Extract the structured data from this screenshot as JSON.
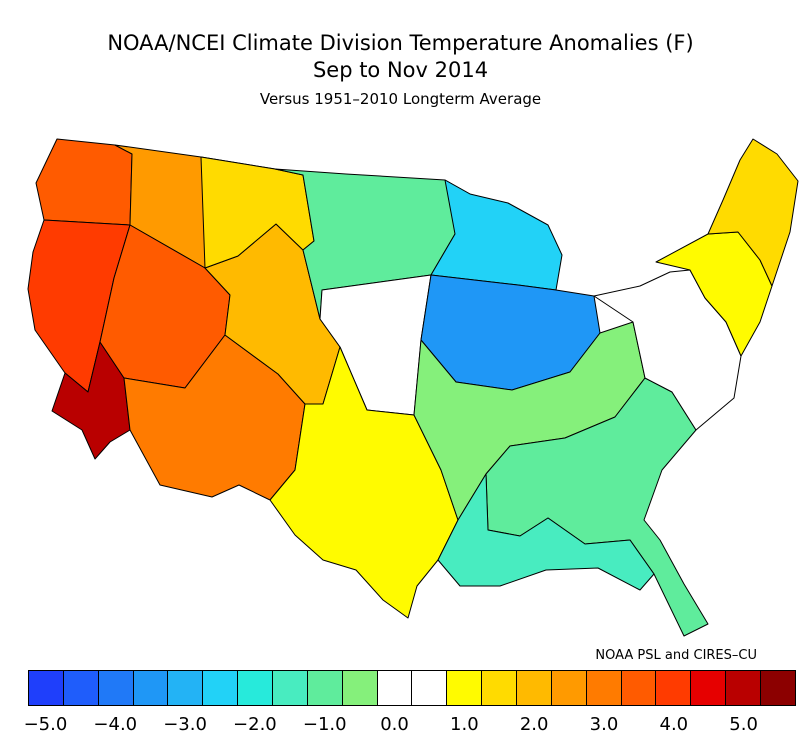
{
  "header": {
    "title_line_1": "NOAA/NCEI Climate Division Temperature Anomalies (F)",
    "title_line_2": "Sep to Nov 2014",
    "subtitle": "Versus 1951–2010 Longterm Average"
  },
  "credit": "NOAA PSL and CIRES–CU",
  "colorbar": {
    "colors": [
      "#1f3ffb",
      "#1f5dfb",
      "#2079f7",
      "#1f97f6",
      "#23b3f5",
      "#22d2f7",
      "#27eadb",
      "#48ecc0",
      "#5fec9c",
      "#85f07b",
      "#ffffff",
      "#ffffff",
      "#fffb00",
      "#ffdb00",
      "#ffba00",
      "#ff9a00",
      "#ff7b00",
      "#ff5b00",
      "#ff3b00",
      "#e60000",
      "#b90000",
      "#8c0000"
    ],
    "ticks": [
      "−5.0",
      "−4.0",
      "−3.0",
      "−2.0",
      "−1.0",
      "0.0",
      "1.0",
      "2.0",
      "3.0",
      "4.0",
      "5.0"
    ]
  },
  "map": {
    "regions": [
      {
        "name": "pacific-northwest-coast",
        "color": "#ff5b00"
      },
      {
        "name": "northwest-interior",
        "color": "#ff9a00"
      },
      {
        "name": "california-coast",
        "color": "#ff3b00"
      },
      {
        "name": "southern-california",
        "color": "#b90000"
      },
      {
        "name": "great-basin",
        "color": "#ff5b00"
      },
      {
        "name": "southwest",
        "color": "#ff7b00"
      },
      {
        "name": "rockies",
        "color": "#ffba00"
      },
      {
        "name": "northern-rockies",
        "color": "#ffdb00"
      },
      {
        "name": "northern-plains",
        "color": "#5fec9c"
      },
      {
        "name": "central-plains",
        "color": "#ffffff"
      },
      {
        "name": "southern-plains",
        "color": "#fffb00"
      },
      {
        "name": "upper-midwest",
        "color": "#22d2f7"
      },
      {
        "name": "midwest-core",
        "color": "#1f97f6"
      },
      {
        "name": "south-central",
        "color": "#85f07b"
      },
      {
        "name": "southeast",
        "color": "#5fec9c"
      },
      {
        "name": "gulf-coast",
        "color": "#48ecc0"
      },
      {
        "name": "mid-atlantic",
        "color": "#ffffff"
      },
      {
        "name": "northeast",
        "color": "#fffb00"
      },
      {
        "name": "new-england",
        "color": "#ffdb00"
      }
    ]
  }
}
